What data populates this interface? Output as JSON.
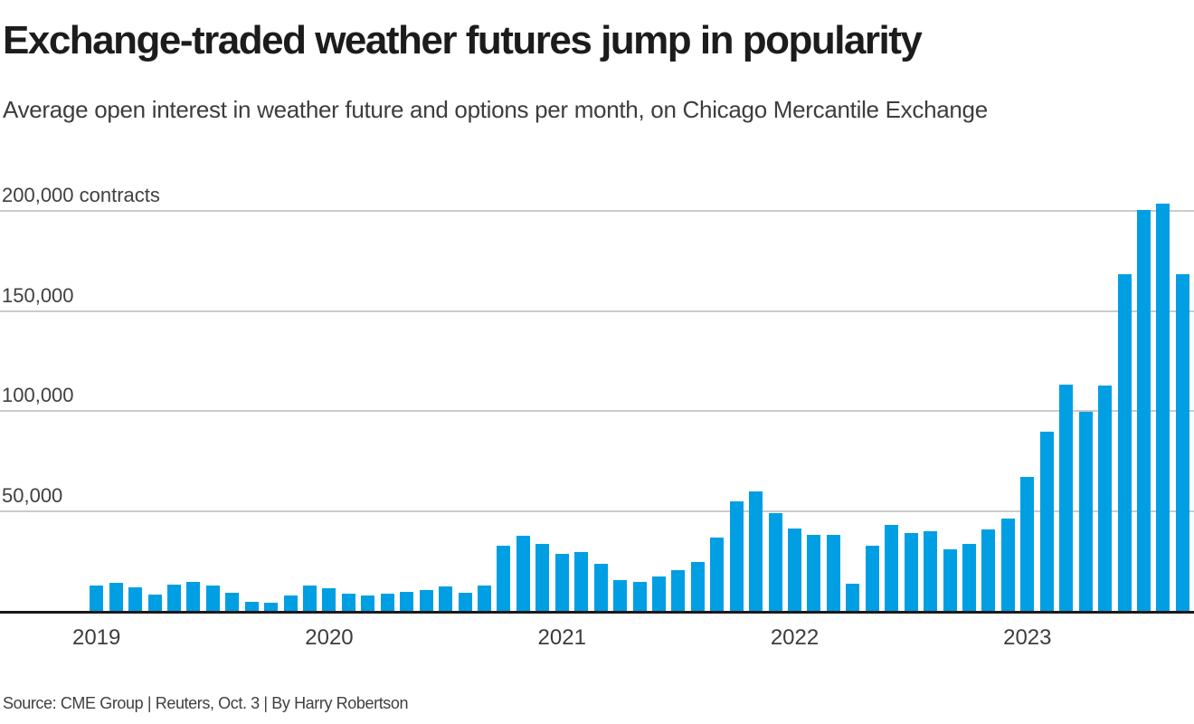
{
  "header": {
    "title": "Exchange-traded weather futures jump in popularity",
    "subtitle": "Average open interest in weather future and options per month, on Chicago Mercantile Exchange"
  },
  "footer": {
    "source": "Source: CME Group | Reuters, Oct. 3 | By Harry Robertson"
  },
  "colors": {
    "bar": "#009fe3",
    "grid": "#cbcbcb",
    "axis": "#1a1a1a",
    "title_text": "#1c1c1c",
    "body_text": "#3d3d3d"
  },
  "chart_data": {
    "type": "bar",
    "title": "Exchange-traded weather futures jump in popularity",
    "subtitle": "Average open interest in weather future and options per month, on Chicago Mercantile Exchange",
    "unit": "contracts",
    "x": [
      "2019-01",
      "2019-02",
      "2019-03",
      "2019-04",
      "2019-05",
      "2019-06",
      "2019-07",
      "2019-08",
      "2019-09",
      "2019-10",
      "2019-11",
      "2019-12",
      "2020-01",
      "2020-02",
      "2020-03",
      "2020-04",
      "2020-05",
      "2020-06",
      "2020-07",
      "2020-08",
      "2020-09",
      "2020-10",
      "2020-11",
      "2020-12",
      "2021-01",
      "2021-02",
      "2021-03",
      "2021-04",
      "2021-05",
      "2021-06",
      "2021-07",
      "2021-08",
      "2021-09",
      "2021-10",
      "2021-11",
      "2021-12",
      "2022-01",
      "2022-02",
      "2022-03",
      "2022-04",
      "2022-05",
      "2022-06",
      "2022-07",
      "2022-08",
      "2022-09",
      "2022-10",
      "2022-11",
      "2022-12",
      "2023-01",
      "2023-02",
      "2023-03",
      "2023-04",
      "2023-05",
      "2023-06",
      "2023-07",
      "2023-08",
      "2023-09"
    ],
    "values": [
      12600,
      13800,
      11600,
      8300,
      13100,
      14600,
      12600,
      9000,
      4500,
      4100,
      7800,
      12600,
      11100,
      8400,
      7700,
      8700,
      9600,
      10600,
      12100,
      9100,
      12500,
      32500,
      37600,
      33600,
      28300,
      29500,
      23600,
      15300,
      14300,
      17100,
      20100,
      24300,
      36500,
      54700,
      59500,
      48800,
      41200,
      37900,
      38000,
      13600,
      32300,
      42700,
      38600,
      39500,
      30900,
      33600,
      40400,
      46200,
      66700,
      89400,
      113000,
      99500,
      112500,
      167700,
      199700,
      203000,
      167700
    ],
    "x_year_labels": [
      "2019",
      "2020",
      "2021",
      "2022",
      "2023"
    ],
    "y_ticks": [
      {
        "value": 50000,
        "label": "50,000"
      },
      {
        "value": 100000,
        "label": "100,000"
      },
      {
        "value": 150000,
        "label": "150,000"
      },
      {
        "value": 200000,
        "label": "200,000 contracts"
      }
    ],
    "ylim": [
      0,
      210000
    ],
    "grid": true,
    "legend": false
  }
}
